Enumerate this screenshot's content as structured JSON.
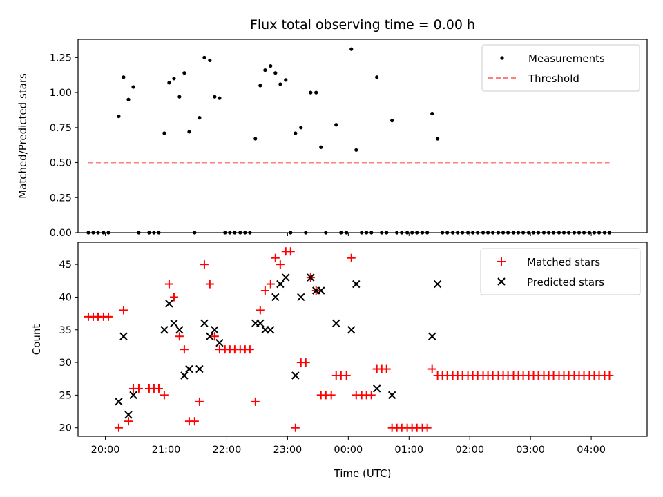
{
  "chart_data": [
    {
      "type": "scatter",
      "title": "Flux total observing time = 0.00 h",
      "xlabel": "",
      "ylabel": "Matched/Predicted stars",
      "ylim": [
        0,
        1.38
      ],
      "yticks": [
        0.0,
        0.25,
        0.5,
        0.75,
        1.0,
        1.25
      ],
      "ytick_labels": [
        "0.00",
        "0.25",
        "0.50",
        "0.75",
        "1.00",
        "1.25"
      ],
      "xlim": [
        19.55,
        28.92
      ],
      "legend_position": "top-right",
      "grid": false,
      "series": [
        {
          "name": "Measurements",
          "marker": "dot",
          "color": "#000000",
          "points": [
            [
              19.72,
              0
            ],
            [
              19.8,
              0
            ],
            [
              19.88,
              0
            ],
            [
              19.97,
              0
            ],
            [
              20.05,
              0
            ],
            [
              20.22,
              0.83
            ],
            [
              20.3,
              1.11
            ],
            [
              20.38,
              0.95
            ],
            [
              20.46,
              1.04
            ],
            [
              20.55,
              0
            ],
            [
              20.72,
              0
            ],
            [
              20.8,
              0
            ],
            [
              20.88,
              0
            ],
            [
              20.97,
              0.71
            ],
            [
              21.05,
              1.07
            ],
            [
              21.13,
              1.1
            ],
            [
              21.22,
              0.97
            ],
            [
              21.3,
              1.14
            ],
            [
              21.38,
              0.72
            ],
            [
              21.47,
              0
            ],
            [
              21.55,
              0.82
            ],
            [
              21.63,
              1.25
            ],
            [
              21.72,
              1.23
            ],
            [
              21.8,
              0.97
            ],
            [
              21.88,
              0.96
            ],
            [
              21.97,
              0
            ],
            [
              22.05,
              0
            ],
            [
              22.13,
              0
            ],
            [
              22.22,
              0
            ],
            [
              22.3,
              0
            ],
            [
              22.38,
              0
            ],
            [
              22.47,
              0.67
            ],
            [
              22.55,
              1.05
            ],
            [
              22.63,
              1.16
            ],
            [
              22.72,
              1.19
            ],
            [
              22.8,
              1.14
            ],
            [
              22.88,
              1.06
            ],
            [
              22.97,
              1.09
            ],
            [
              23.05,
              0
            ],
            [
              23.13,
              0.71
            ],
            [
              23.22,
              0.75
            ],
            [
              23.3,
              0
            ],
            [
              23.38,
              1.0
            ],
            [
              23.47,
              1.0
            ],
            [
              23.55,
              0.61
            ],
            [
              23.63,
              0
            ],
            [
              23.8,
              0.77
            ],
            [
              23.88,
              0
            ],
            [
              23.97,
              0
            ],
            [
              24.05,
              1.31
            ],
            [
              24.13,
              0.59
            ],
            [
              24.22,
              0
            ],
            [
              24.3,
              0
            ],
            [
              24.38,
              0
            ],
            [
              24.47,
              1.11
            ],
            [
              24.55,
              0
            ],
            [
              24.63,
              0
            ],
            [
              24.72,
              0.8
            ],
            [
              24.8,
              0
            ],
            [
              24.88,
              0
            ],
            [
              24.97,
              0
            ],
            [
              25.05,
              0
            ],
            [
              25.13,
              0
            ],
            [
              25.22,
              0
            ],
            [
              25.3,
              0
            ],
            [
              25.38,
              0.85
            ],
            [
              25.47,
              0.67
            ],
            [
              25.55,
              0
            ],
            [
              25.63,
              0
            ],
            [
              25.72,
              0
            ],
            [
              25.8,
              0
            ],
            [
              25.88,
              0
            ],
            [
              25.97,
              0
            ],
            [
              26.05,
              0
            ],
            [
              26.13,
              0
            ],
            [
              26.22,
              0
            ],
            [
              26.3,
              0
            ],
            [
              26.38,
              0
            ],
            [
              26.47,
              0
            ],
            [
              26.55,
              0
            ],
            [
              26.63,
              0
            ],
            [
              26.72,
              0
            ],
            [
              26.8,
              0
            ],
            [
              26.88,
              0
            ],
            [
              26.97,
              0
            ],
            [
              27.05,
              0
            ],
            [
              27.13,
              0
            ],
            [
              27.22,
              0
            ],
            [
              27.3,
              0
            ],
            [
              27.38,
              0
            ],
            [
              27.47,
              0
            ],
            [
              27.55,
              0
            ],
            [
              27.63,
              0
            ],
            [
              27.72,
              0
            ],
            [
              27.8,
              0
            ],
            [
              27.88,
              0
            ],
            [
              27.97,
              0
            ],
            [
              28.05,
              0
            ],
            [
              28.13,
              0
            ],
            [
              28.22,
              0
            ],
            [
              28.3,
              0
            ]
          ]
        },
        {
          "name": "Threshold",
          "marker": "dashed-line",
          "color": "#ff7f7f",
          "points": [
            [
              19.72,
              0.5
            ],
            [
              28.3,
              0.5
            ]
          ]
        }
      ]
    },
    {
      "type": "scatter",
      "title": "",
      "xlabel": "Time (UTC)",
      "ylabel": "Count",
      "ylim": [
        18.7,
        48.4
      ],
      "yticks": [
        20,
        25,
        30,
        35,
        40,
        45
      ],
      "ytick_labels": [
        "20",
        "25",
        "30",
        "35",
        "40",
        "45"
      ],
      "xlim": [
        19.55,
        28.92
      ],
      "xticks": [
        20,
        21,
        22,
        23,
        24,
        25,
        26,
        27,
        28
      ],
      "xtick_labels": [
        "20:00",
        "21:00",
        "22:00",
        "23:00",
        "00:00",
        "01:00",
        "02:00",
        "03:00",
        "04:00"
      ],
      "legend_position": "top-right",
      "grid": false,
      "series": [
        {
          "name": "Matched stars",
          "marker": "plus",
          "color": "#ff0000",
          "points": [
            [
              19.72,
              37
            ],
            [
              19.8,
              37
            ],
            [
              19.88,
              37
            ],
            [
              19.97,
              37
            ],
            [
              20.05,
              37
            ],
            [
              20.22,
              20
            ],
            [
              20.3,
              38
            ],
            [
              20.38,
              21
            ],
            [
              20.46,
              26
            ],
            [
              20.55,
              26
            ],
            [
              20.72,
              26
            ],
            [
              20.8,
              26
            ],
            [
              20.88,
              26
            ],
            [
              20.97,
              25
            ],
            [
              21.05,
              42
            ],
            [
              21.13,
              40
            ],
            [
              21.22,
              34
            ],
            [
              21.3,
              32
            ],
            [
              21.38,
              21
            ],
            [
              21.47,
              21
            ],
            [
              21.55,
              24
            ],
            [
              21.63,
              45
            ],
            [
              21.72,
              42
            ],
            [
              21.8,
              34
            ],
            [
              21.88,
              32
            ],
            [
              21.97,
              32
            ],
            [
              22.05,
              32
            ],
            [
              22.13,
              32
            ],
            [
              22.22,
              32
            ],
            [
              22.3,
              32
            ],
            [
              22.38,
              32
            ],
            [
              22.47,
              24
            ],
            [
              22.55,
              38
            ],
            [
              22.63,
              41
            ],
            [
              22.72,
              42
            ],
            [
              22.8,
              46
            ],
            [
              22.88,
              45
            ],
            [
              22.97,
              47
            ],
            [
              23.05,
              47
            ],
            [
              23.13,
              20
            ],
            [
              23.22,
              30
            ],
            [
              23.3,
              30
            ],
            [
              23.38,
              43
            ],
            [
              23.47,
              41
            ],
            [
              23.55,
              25
            ],
            [
              23.63,
              25
            ],
            [
              23.72,
              25
            ],
            [
              23.8,
              28
            ],
            [
              23.88,
              28
            ],
            [
              23.97,
              28
            ],
            [
              24.05,
              46
            ],
            [
              24.13,
              25
            ],
            [
              24.22,
              25
            ],
            [
              24.3,
              25
            ],
            [
              24.38,
              25
            ],
            [
              24.47,
              29
            ],
            [
              24.55,
              29
            ],
            [
              24.63,
              29
            ],
            [
              24.72,
              20
            ],
            [
              24.8,
              20
            ],
            [
              24.88,
              20
            ],
            [
              24.97,
              20
            ],
            [
              25.05,
              20
            ],
            [
              25.13,
              20
            ],
            [
              25.22,
              20
            ],
            [
              25.3,
              20
            ],
            [
              25.38,
              29
            ],
            [
              25.47,
              28
            ],
            [
              25.55,
              28
            ],
            [
              25.63,
              28
            ],
            [
              25.72,
              28
            ],
            [
              25.8,
              28
            ],
            [
              25.88,
              28
            ],
            [
              25.97,
              28
            ],
            [
              26.05,
              28
            ],
            [
              26.13,
              28
            ],
            [
              26.22,
              28
            ],
            [
              26.3,
              28
            ],
            [
              26.38,
              28
            ],
            [
              26.47,
              28
            ],
            [
              26.55,
              28
            ],
            [
              26.63,
              28
            ],
            [
              26.72,
              28
            ],
            [
              26.8,
              28
            ],
            [
              26.88,
              28
            ],
            [
              26.97,
              28
            ],
            [
              27.05,
              28
            ],
            [
              27.13,
              28
            ],
            [
              27.22,
              28
            ],
            [
              27.3,
              28
            ],
            [
              27.38,
              28
            ],
            [
              27.47,
              28
            ],
            [
              27.55,
              28
            ],
            [
              27.63,
              28
            ],
            [
              27.72,
              28
            ],
            [
              27.8,
              28
            ],
            [
              27.88,
              28
            ],
            [
              27.97,
              28
            ],
            [
              28.05,
              28
            ],
            [
              28.13,
              28
            ],
            [
              28.22,
              28
            ],
            [
              28.3,
              28
            ]
          ]
        },
        {
          "name": "Predicted stars",
          "marker": "x",
          "color": "#000000",
          "points": [
            [
              20.22,
              24
            ],
            [
              20.3,
              34
            ],
            [
              20.38,
              22
            ],
            [
              20.46,
              25
            ],
            [
              20.97,
              35
            ],
            [
              21.05,
              39
            ],
            [
              21.13,
              36
            ],
            [
              21.22,
              35
            ],
            [
              21.3,
              28
            ],
            [
              21.38,
              29
            ],
            [
              21.55,
              29
            ],
            [
              21.63,
              36
            ],
            [
              21.72,
              34
            ],
            [
              21.8,
              35
            ],
            [
              21.88,
              33
            ],
            [
              22.47,
              36
            ],
            [
              22.55,
              36
            ],
            [
              22.63,
              35
            ],
            [
              22.72,
              35
            ],
            [
              22.8,
              40
            ],
            [
              22.88,
              42
            ],
            [
              22.97,
              43
            ],
            [
              23.13,
              28
            ],
            [
              23.22,
              40
            ],
            [
              23.38,
              43
            ],
            [
              23.47,
              41
            ],
            [
              23.55,
              41
            ],
            [
              23.8,
              36
            ],
            [
              24.05,
              35
            ],
            [
              24.13,
              42
            ],
            [
              24.47,
              26
            ],
            [
              24.72,
              25
            ],
            [
              25.38,
              34
            ],
            [
              25.47,
              42
            ]
          ]
        }
      ]
    }
  ]
}
